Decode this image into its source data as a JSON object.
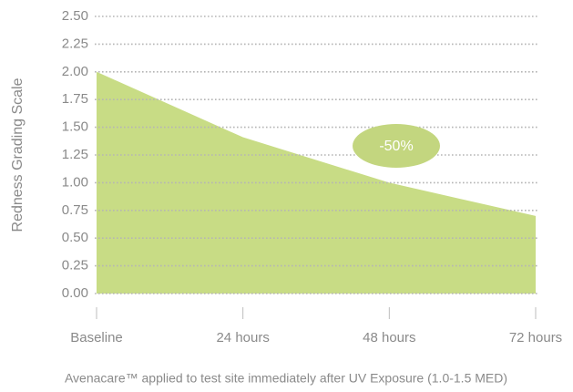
{
  "chart_data": {
    "type": "area",
    "y_label": "Redness Grading Scale",
    "categories": [
      "Baseline",
      "24 hours",
      "48 hours",
      "72 hours"
    ],
    "values": [
      2.0,
      1.41,
      1.0,
      0.7
    ],
    "color": "#c8dc85",
    "ylim": [
      0,
      2.5
    ],
    "yticks": [
      {
        "value": 0,
        "label": "0.00"
      },
      {
        "value": 0.25,
        "label": "0.25"
      },
      {
        "value": 0.5,
        "label": "0.50"
      },
      {
        "value": 0.75,
        "label": "0.75"
      },
      {
        "value": 1,
        "label": "1.00"
      },
      {
        "value": 1.25,
        "label": "1.25"
      },
      {
        "value": 1.5,
        "label": "1.50"
      },
      {
        "value": 1.75,
        "label": "1.75"
      },
      {
        "value": 2,
        "label": "2.00"
      },
      {
        "value": 2.25,
        "label": "2.25"
      },
      {
        "value": 2.5,
        "label": "2.50"
      }
    ],
    "grid": true,
    "annotations": [
      {
        "text": "-50%",
        "color": "#c3d67f"
      }
    ],
    "caption": "Avenacare™ applied to test site immediately after UV Exposure (1.0-1.5 MED)"
  }
}
